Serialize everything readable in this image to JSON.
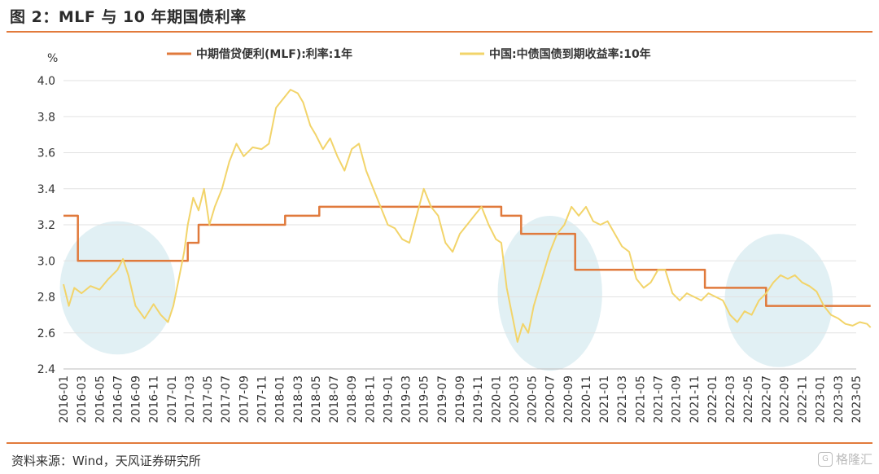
{
  "header": {
    "title": "图 2：MLF 与 10 年期国债利率"
  },
  "footer": {
    "source": "资料来源：Wind，天风证券研究所",
    "watermark": "格隆汇"
  },
  "chart_data": {
    "type": "line",
    "ylabel": "%",
    "ylim": [
      2.4,
      4.0
    ],
    "yticks": [
      "4.0",
      "3.8",
      "3.6",
      "3.4",
      "3.2",
      "3.0",
      "2.8",
      "2.6",
      "2.4"
    ],
    "xticks": [
      "2016-01",
      "2016-03",
      "2016-05",
      "2016-07",
      "2016-09",
      "2016-11",
      "2017-01",
      "2017-03",
      "2017-05",
      "2017-07",
      "2017-09",
      "2017-11",
      "2018-01",
      "2018-03",
      "2018-05",
      "2018-07",
      "2018-09",
      "2018-11",
      "2019-01",
      "2019-03",
      "2019-05",
      "2019-07",
      "2019-09",
      "2019-11",
      "2020-01",
      "2020-03",
      "2020-05",
      "2020-07",
      "2020-09",
      "2020-11",
      "2021-01",
      "2021-03",
      "2021-05",
      "2021-07",
      "2021-09",
      "2021-11",
      "2022-01",
      "2022-03",
      "2022-05",
      "2022-07",
      "2022-09",
      "2022-11",
      "2023-01",
      "2023-03",
      "2023-05"
    ],
    "legend_placement": "top",
    "grid": "horizontal",
    "series": [
      {
        "name": "中期借贷便利(MLF):利率:1年",
        "color": "#e07a3c",
        "kind": "step",
        "x": [
          0,
          0.8,
          0.8,
          6.9,
          6.9,
          7.5,
          7.5,
          12.3,
          12.3,
          14.2,
          14.2,
          14.7,
          14.7,
          24.3,
          24.3,
          25.4,
          25.4,
          28.4,
          28.4,
          35.6,
          35.6,
          39.0,
          39.0,
          41.3,
          41.3,
          44.8
        ],
        "y": [
          3.25,
          3.25,
          3.0,
          3.0,
          3.1,
          3.1,
          3.2,
          3.2,
          3.25,
          3.25,
          3.3,
          3.3,
          3.3,
          3.3,
          3.25,
          3.25,
          3.15,
          3.15,
          2.95,
          2.95,
          2.85,
          2.85,
          2.75,
          2.75,
          2.75,
          2.75
        ]
      },
      {
        "name": "中国:中债国债到期收益率:10年",
        "color": "#f2d46a",
        "kind": "line",
        "x": [
          0,
          0.3,
          0.6,
          1.0,
          1.5,
          2.0,
          2.5,
          3.0,
          3.3,
          3.6,
          4.0,
          4.5,
          5.0,
          5.4,
          5.8,
          6.1,
          6.4,
          6.7,
          6.9,
          7.2,
          7.5,
          7.8,
          8.1,
          8.4,
          8.8,
          9.2,
          9.6,
          10.0,
          10.5,
          11.0,
          11.4,
          11.8,
          12.2,
          12.6,
          13.0,
          13.3,
          13.7,
          14.0,
          14.4,
          14.8,
          15.2,
          15.6,
          16.0,
          16.4,
          16.8,
          17.2,
          17.6,
          18.0,
          18.4,
          18.8,
          19.2,
          19.6,
          20.0,
          20.4,
          20.8,
          21.2,
          21.6,
          22.0,
          22.4,
          22.8,
          23.2,
          23.6,
          24.0,
          24.3,
          24.6,
          24.9,
          25.2,
          25.5,
          25.8,
          26.1,
          26.4,
          26.7,
          27.0,
          27.4,
          27.8,
          28.2,
          28.6,
          29.0,
          29.4,
          29.8,
          30.2,
          30.6,
          31.0,
          31.4,
          31.8,
          32.2,
          32.6,
          33.0,
          33.4,
          33.8,
          34.2,
          34.6,
          35.0,
          35.4,
          35.8,
          36.2,
          36.6,
          37.0,
          37.4,
          37.8,
          38.2,
          38.6,
          39.0,
          39.4,
          39.8,
          40.2,
          40.6,
          41.0,
          41.4,
          41.8,
          42.2,
          42.6,
          43.0,
          43.4,
          43.8,
          44.2,
          44.6,
          44.8
        ],
        "y": [
          2.87,
          2.75,
          2.85,
          2.82,
          2.86,
          2.84,
          2.9,
          2.95,
          3.01,
          2.92,
          2.75,
          2.68,
          2.76,
          2.7,
          2.66,
          2.75,
          2.9,
          3.05,
          3.2,
          3.35,
          3.28,
          3.4,
          3.2,
          3.3,
          3.4,
          3.55,
          3.65,
          3.58,
          3.63,
          3.62,
          3.65,
          3.85,
          3.9,
          3.95,
          3.93,
          3.88,
          3.75,
          3.7,
          3.62,
          3.68,
          3.58,
          3.5,
          3.62,
          3.65,
          3.5,
          3.4,
          3.3,
          3.2,
          3.18,
          3.12,
          3.1,
          3.25,
          3.4,
          3.3,
          3.25,
          3.1,
          3.05,
          3.15,
          3.2,
          3.25,
          3.3,
          3.2,
          3.12,
          3.1,
          2.85,
          2.7,
          2.55,
          2.65,
          2.6,
          2.75,
          2.85,
          2.95,
          3.05,
          3.15,
          3.2,
          3.3,
          3.25,
          3.3,
          3.22,
          3.2,
          3.22,
          3.15,
          3.08,
          3.05,
          2.9,
          2.85,
          2.88,
          2.95,
          2.95,
          2.82,
          2.78,
          2.82,
          2.8,
          2.78,
          2.82,
          2.8,
          2.78,
          2.7,
          2.66,
          2.72,
          2.7,
          2.78,
          2.82,
          2.88,
          2.92,
          2.9,
          2.92,
          2.88,
          2.86,
          2.83,
          2.75,
          2.7,
          2.68,
          2.65,
          2.64,
          2.66,
          2.65,
          2.63
        ]
      }
    ],
    "annotations": [
      {
        "type": "ellipse",
        "center_x": 3.0,
        "center_y": 2.85,
        "rx": 3.2,
        "ry": 0.37,
        "color": "#dcedf2"
      },
      {
        "type": "ellipse",
        "center_x": 27.0,
        "center_y": 2.82,
        "rx": 2.9,
        "ry": 0.43,
        "color": "#dcedf2"
      },
      {
        "type": "ellipse",
        "center_x": 39.7,
        "center_y": 2.78,
        "rx": 3.0,
        "ry": 0.37,
        "color": "#dcedf2"
      }
    ]
  }
}
